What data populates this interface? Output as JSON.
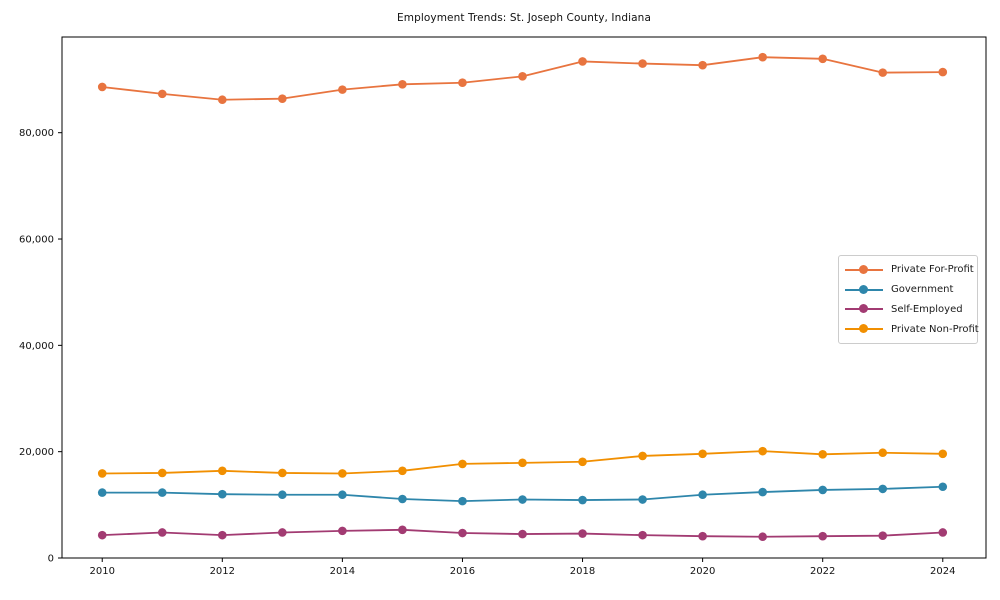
{
  "window": {
    "background": "#ffffff",
    "text_color": "#111111",
    "axis_color": "#000000",
    "legend_border_color": "#cccccc"
  },
  "chart_data": {
    "type": "line",
    "title": "Employment Trends: St. Joseph County, Indiana",
    "xlabel": "",
    "ylabel": "",
    "grid": false,
    "marker": "circle",
    "x": [
      2010,
      2011,
      2012,
      2013,
      2014,
      2015,
      2016,
      2017,
      2018,
      2019,
      2020,
      2021,
      2022,
      2023,
      2024
    ],
    "series": [
      {
        "name": "Private For-Profit",
        "color": "#E8743F",
        "values": [
          88600,
          87300,
          86200,
          86400,
          88100,
          89100,
          89400,
          90600,
          93400,
          93000,
          92700,
          94200,
          93900,
          91300,
          91400
        ]
      },
      {
        "name": "Government",
        "color": "#2E86AB",
        "values": [
          12300,
          12300,
          12000,
          11900,
          11900,
          11100,
          10700,
          11000,
          10900,
          11000,
          11900,
          12400,
          12800,
          13000,
          13400
        ]
      },
      {
        "name": "Self-Employed",
        "color": "#A23B72",
        "values": [
          4300,
          4800,
          4300,
          4800,
          5100,
          5300,
          4700,
          4500,
          4600,
          4300,
          4100,
          4000,
          4100,
          4200,
          4800
        ]
      },
      {
        "name": "Private Non-Profit",
        "color": "#F18F01",
        "values": [
          15900,
          16000,
          16400,
          16000,
          15900,
          16400,
          17700,
          17900,
          18100,
          19200,
          19600,
          20100,
          19500,
          19800,
          19600
        ]
      }
    ],
    "xticks": [
      2010,
      2012,
      2014,
      2016,
      2018,
      2020,
      2022,
      2024
    ],
    "xtick_labels": [
      "2010",
      "2012",
      "2014",
      "2016",
      "2018",
      "2020",
      "2022",
      "2024"
    ],
    "yticks": [
      0,
      20000,
      40000,
      60000,
      80000
    ],
    "ytick_labels": [
      "0",
      "20,000",
      "40,000",
      "60,000",
      "80,000"
    ],
    "xlim": [
      2009.33,
      2024.72
    ],
    "ylim": [
      0,
      98000
    ],
    "legend_position": "right"
  }
}
